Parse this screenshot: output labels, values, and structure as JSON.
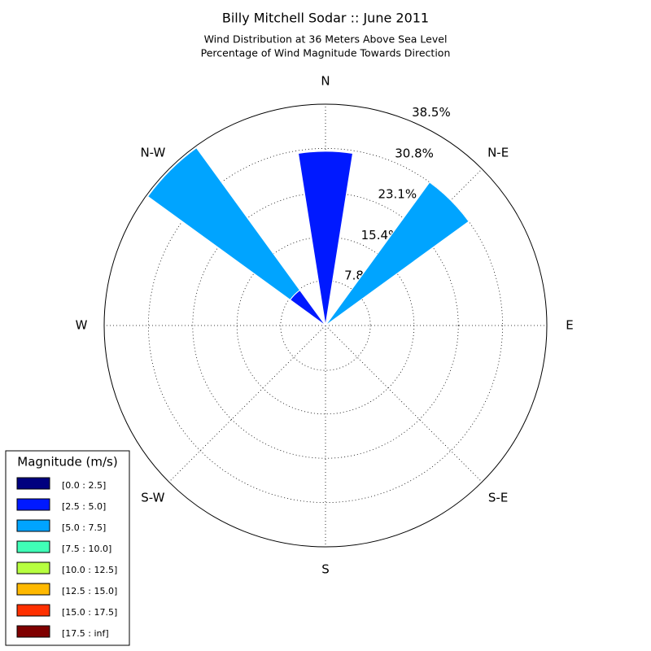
{
  "chart_data": {
    "type": "windrose",
    "title": "Billy Mitchell Sodar :: June 2011",
    "subtitle": [
      "Wind Distribution at 36 Meters Above Sea Level",
      "Percentage of Wind Magnitude Towards Direction"
    ],
    "categories": [
      "N",
      "N-E",
      "E",
      "S-E",
      "S",
      "S-W",
      "W",
      "N-W"
    ],
    "ylim": [
      0,
      38.5
    ],
    "yticks": [
      {
        "value": 7.8,
        "label": "7.8%"
      },
      {
        "value": 15.4,
        "label": "15.4%"
      },
      {
        "value": 23.1,
        "label": "23.1%"
      },
      {
        "value": 30.8,
        "label": "30.8%"
      },
      {
        "value": 38.5,
        "label": "38.5%"
      }
    ],
    "grid": true,
    "legend_title": "Magnitude (m/s)",
    "legend_position": "lower left",
    "series": [
      {
        "name": "[0.0 : 2.5]",
        "color": "#00007f",
        "values": [
          0,
          0,
          0,
          0,
          0,
          0,
          0,
          0
        ]
      },
      {
        "name": "[2.5 : 5.0]",
        "color": "#0019ff",
        "values": [
          30.3,
          0,
          0,
          0,
          0,
          0,
          0,
          7.6
        ]
      },
      {
        "name": "[5.0 : 7.5]",
        "color": "#00a4ff",
        "values": [
          0,
          30.8,
          0,
          0,
          0,
          0,
          0,
          30.6
        ]
      },
      {
        "name": "[7.5 : 10.0]",
        "color": "#40ffb7",
        "values": [
          0,
          0,
          0,
          0,
          0,
          0,
          0,
          0
        ]
      },
      {
        "name": "[10.0 : 12.5]",
        "color": "#b7ff40",
        "values": [
          0,
          0,
          0,
          0,
          0,
          0,
          0,
          0
        ]
      },
      {
        "name": "[12.5 : 15.0]",
        "color": "#ffb900",
        "values": [
          0,
          0,
          0,
          0,
          0,
          0,
          0,
          0
        ]
      },
      {
        "name": "[15.0 : 17.5]",
        "color": "#ff3000",
        "values": [
          0,
          0,
          0,
          0,
          0,
          0,
          0,
          0
        ]
      },
      {
        "name": "[17.5 : inf]",
        "color": "#7f0000",
        "values": [
          0,
          0,
          0,
          0,
          0,
          0,
          0,
          0
        ]
      }
    ]
  }
}
